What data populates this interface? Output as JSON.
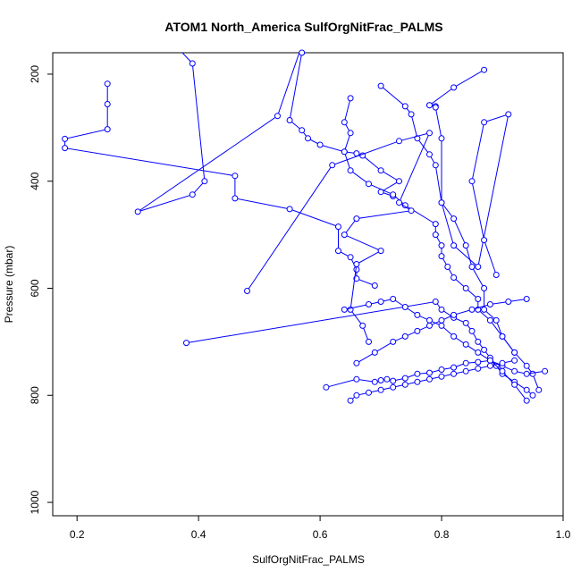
{
  "chart_data": {
    "type": "line",
    "title": "ATOM1 North_America SulfOrgNitFrac_PALMS",
    "xlabel": "SulfOrgNitFrac_PALMS",
    "ylabel": "Pressure (mbar)",
    "xlim": [
      0.16,
      1.0
    ],
    "ylim": [
      1025,
      160
    ],
    "y_reversed": true,
    "grid": false,
    "legend": "none",
    "colors": {
      "series": "#0000ff",
      "frame": "#000000"
    },
    "x_ticks": [
      0.2,
      0.4,
      0.6,
      0.8,
      1.0
    ],
    "x_tick_labels": [
      "0.2",
      "0.4",
      "0.6",
      "0.8",
      "1.0"
    ],
    "y_ticks": [
      200,
      400,
      600,
      800,
      1000
    ],
    "y_tick_labels": [
      "200",
      "400",
      "600",
      "800",
      "1000"
    ],
    "series": [
      {
        "x": [
          0.34,
          0.39,
          0.41,
          0.39,
          0.3,
          0.53,
          0.59
        ],
        "y": [
          120,
          180,
          400,
          425,
          457,
          278,
          80
        ]
      },
      {
        "x": [
          0.25,
          0.25,
          0.25,
          0.18,
          0.18,
          0.46,
          0.46,
          0.55,
          0.63,
          0.63,
          0.65,
          0.66,
          0.66,
          0.69
        ],
        "y": [
          218,
          256,
          303,
          321,
          338,
          390,
          432,
          452,
          485,
          530,
          542,
          565,
          582,
          595
        ]
      },
      {
        "x": [
          0.57,
          0.55,
          0.57,
          0.58,
          0.6,
          0.64,
          0.66,
          0.67,
          0.7,
          0.73,
          0.7,
          0.72
        ],
        "y": [
          160,
          286,
          305,
          320,
          332,
          345,
          348,
          352,
          380,
          400,
          420,
          428
        ]
      },
      {
        "x": [
          0.65,
          0.64,
          0.65,
          0.64,
          0.65,
          0.68,
          0.72,
          0.74,
          0.79,
          0.79,
          0.8,
          0.8,
          0.81,
          0.82,
          0.84,
          0.86,
          0.86,
          0.88,
          0.9,
          0.92
        ],
        "y": [
          245,
          290,
          310,
          345,
          380,
          405,
          425,
          445,
          480,
          500,
          520,
          540,
          560,
          580,
          600,
          620,
          640,
          660,
          690,
          720
        ]
      },
      {
        "x": [
          0.7,
          0.74,
          0.75,
          0.76,
          0.78,
          0.79,
          0.8,
          0.82,
          0.84,
          0.85,
          0.87,
          0.87,
          0.89,
          0.9,
          0.92,
          0.94,
          0.95,
          0.96
        ],
        "y": [
          222,
          260,
          275,
          320,
          350,
          370,
          440,
          470,
          520,
          560,
          600,
          640,
          660,
          690,
          720,
          745,
          760,
          790
        ]
      },
      {
        "x": [
          0.87,
          0.82,
          0.78,
          0.78,
          0.79,
          0.79,
          0.8,
          0.8,
          0.82,
          0.86,
          0.91,
          0.87,
          0.85,
          0.87,
          0.89
        ],
        "y": [
          192,
          225,
          258,
          258,
          260,
          262,
          320,
          440,
          520,
          560,
          275,
          290,
          400,
          510,
          575
        ]
      },
      {
        "x": [
          0.48,
          0.62,
          0.73,
          0.78,
          0.73,
          0.75,
          0.66,
          0.64,
          0.7,
          0.66,
          0.65,
          0.67,
          0.68
        ],
        "y": [
          605,
          370,
          325,
          310,
          440,
          455,
          470,
          500,
          530,
          555,
          640,
          670,
          700
        ]
      },
      {
        "x": [
          0.38,
          0.79,
          0.8,
          0.82,
          0.84,
          0.85,
          0.86,
          0.87,
          0.88,
          0.89,
          0.9,
          0.92,
          0.94,
          0.95
        ],
        "y": [
          702,
          625,
          640,
          655,
          665,
          680,
          700,
          715,
          730,
          745,
          760,
          775,
          790,
          800
        ]
      },
      {
        "x": [
          0.61,
          0.66,
          0.69,
          0.7,
          0.71,
          0.72,
          0.74,
          0.76,
          0.78,
          0.8,
          0.82,
          0.84,
          0.86,
          0.88,
          0.9,
          0.92,
          0.94,
          0.97
        ],
        "y": [
          785,
          770,
          775,
          772,
          770,
          773,
          768,
          760,
          758,
          752,
          748,
          740,
          738,
          735,
          745,
          755,
          760,
          755
        ]
      },
      {
        "x": [
          0.64,
          0.68,
          0.7,
          0.72,
          0.74,
          0.76,
          0.78,
          0.8,
          0.82,
          0.84,
          0.86,
          0.88,
          0.9,
          0.92,
          0.94
        ],
        "y": [
          640,
          630,
          625,
          620,
          635,
          650,
          660,
          670,
          690,
          705,
          720,
          735,
          755,
          780,
          810
        ]
      },
      {
        "x": [
          0.66,
          0.69,
          0.72,
          0.74,
          0.76,
          0.78,
          0.8,
          0.82,
          0.85,
          0.88,
          0.91,
          0.94
        ],
        "y": [
          740,
          720,
          700,
          690,
          680,
          670,
          660,
          650,
          640,
          630,
          625,
          620
        ]
      },
      {
        "x": [
          0.65,
          0.66,
          0.68,
          0.7,
          0.72,
          0.74,
          0.76,
          0.78,
          0.8,
          0.82,
          0.84,
          0.86,
          0.88,
          0.9,
          0.92
        ],
        "y": [
          810,
          800,
          795,
          790,
          785,
          780,
          775,
          770,
          765,
          760,
          755,
          750,
          745,
          740,
          735
        ]
      }
    ]
  }
}
